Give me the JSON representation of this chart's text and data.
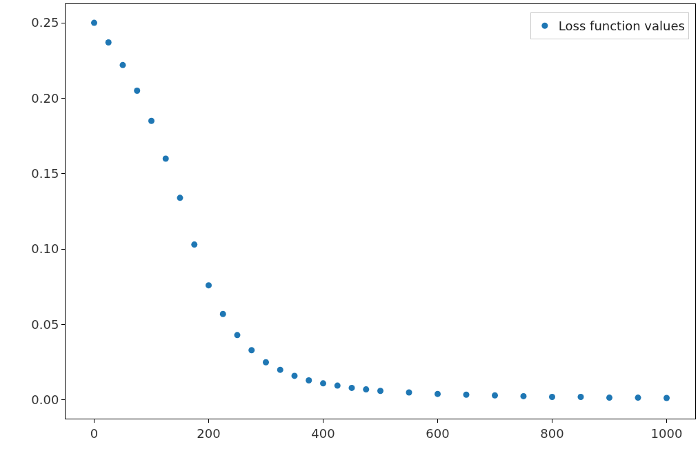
{
  "chart_data": {
    "type": "scatter",
    "marker": "circle",
    "legend": "top right",
    "xlim": [
      -50,
      1050
    ],
    "ylim": [
      -0.0124,
      0.2624
    ],
    "xticks": [
      0,
      200,
      400,
      600,
      800,
      1000
    ],
    "yticks": [
      {
        "value": 0,
        "label": "0.00"
      },
      {
        "value": 0.05,
        "label": "0.05"
      },
      {
        "value": 0.1,
        "label": "0.10"
      },
      {
        "value": 0.15,
        "label": "0.15"
      },
      {
        "value": 0.2,
        "label": "0.20"
      },
      {
        "value": 0.25,
        "label": "0.25"
      }
    ],
    "x": [
      0,
      25,
      50,
      75,
      100,
      125,
      150,
      175,
      200,
      225,
      250,
      275,
      300,
      325,
      350,
      375,
      400,
      425,
      450,
      475,
      500,
      550,
      600,
      650,
      700,
      750,
      800,
      850,
      900,
      950,
      1000
    ],
    "series": [
      {
        "name": "Loss function values",
        "color": "#1f77b4",
        "values": [
          0.25,
          0.237,
          0.222,
          0.205,
          0.185,
          0.16,
          0.134,
          0.103,
          0.076,
          0.057,
          0.043,
          0.033,
          0.025,
          0.02,
          0.016,
          0.013,
          0.011,
          0.0095,
          0.008,
          0.007,
          0.006,
          0.005,
          0.004,
          0.0035,
          0.003,
          0.0025,
          0.002,
          0.002,
          0.0015,
          0.0015,
          0.0013
        ]
      }
    ]
  }
}
